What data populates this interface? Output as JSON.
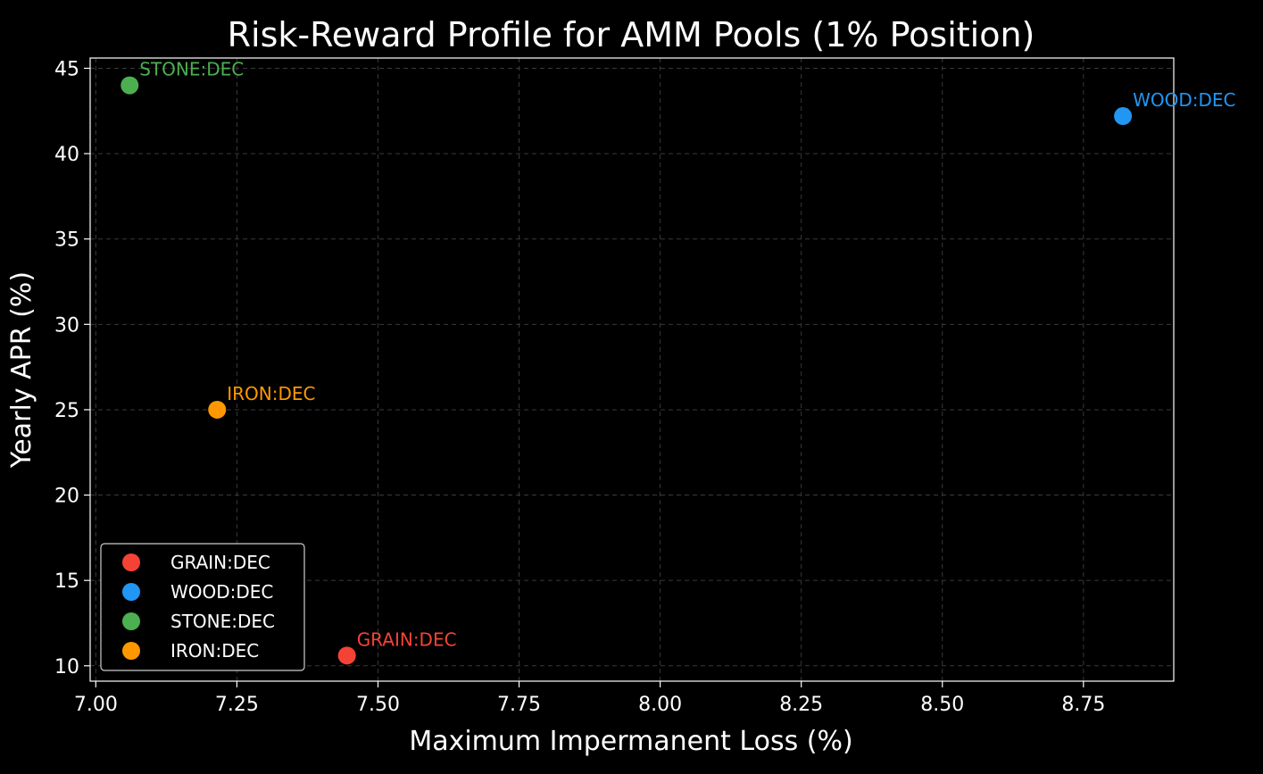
{
  "chart_data": {
    "type": "scatter",
    "title": "Risk-Reward Profile for AMM Pools (1% Position)",
    "xlabel": "Maximum Impermanent Loss (%)",
    "ylabel": "Yearly APR (%)",
    "xlim": [
      6.99,
      8.91
    ],
    "ylim": [
      9.1,
      45.6
    ],
    "xticks": [
      "7.00",
      "7.25",
      "7.50",
      "7.75",
      "8.00",
      "8.25",
      "8.50",
      "8.75"
    ],
    "yticks": [
      "10",
      "15",
      "20",
      "25",
      "30",
      "35",
      "40",
      "45"
    ],
    "grid": true,
    "legend_position": "lower-left",
    "series": [
      {
        "name": "GRAIN:DEC",
        "color": "#f44336",
        "x": [
          7.445
        ],
        "y": [
          10.6
        ],
        "label": "GRAIN:DEC"
      },
      {
        "name": "WOOD:DEC",
        "color": "#2196f3",
        "x": [
          8.82
        ],
        "y": [
          42.2
        ],
        "label": "WOOD:DEC"
      },
      {
        "name": "STONE:DEC",
        "color": "#4caf50",
        "x": [
          7.06
        ],
        "y": [
          44.0
        ],
        "label": "STONE:DEC"
      },
      {
        "name": "IRON:DEC",
        "color": "#ff9800",
        "x": [
          7.215
        ],
        "y": [
          25.0
        ],
        "label": "IRON:DEC"
      }
    ]
  }
}
